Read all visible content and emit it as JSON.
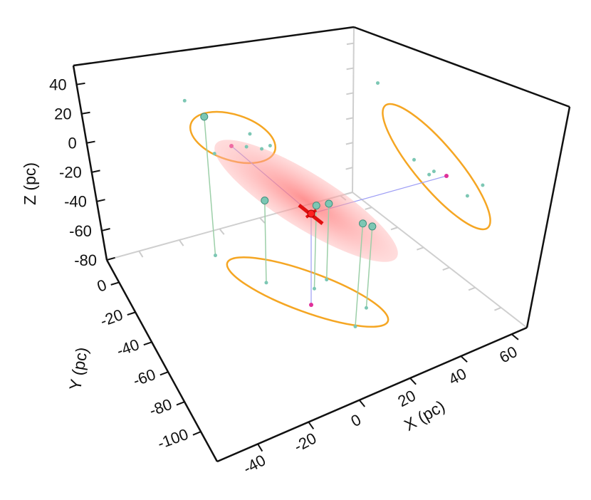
{
  "chart_data": {
    "type": "scatter3d",
    "x_label": "X (pc)",
    "y_label": "Y (pc)",
    "z_label": "Z (pc)",
    "xlim": [
      -56,
      66
    ],
    "ylim": [
      -120,
      15
    ],
    "zlim": [
      -80,
      53
    ],
    "xticks": [
      -40,
      -20,
      0,
      20,
      40,
      60
    ],
    "yticks": [
      -100,
      -80,
      -60,
      -40,
      -20,
      0
    ],
    "zticks": [
      -80,
      -60,
      -40,
      -20,
      0,
      20,
      40
    ],
    "color": "#7cc7b4",
    "x": [
      -10,
      1,
      23,
      18,
      27,
      16
    ],
    "y": [
      -1,
      -28,
      -39,
      -75,
      -66,
      -42
    ],
    "z": [
      17,
      -25,
      -29,
      -16,
      -28,
      -25
    ]
  }
}
